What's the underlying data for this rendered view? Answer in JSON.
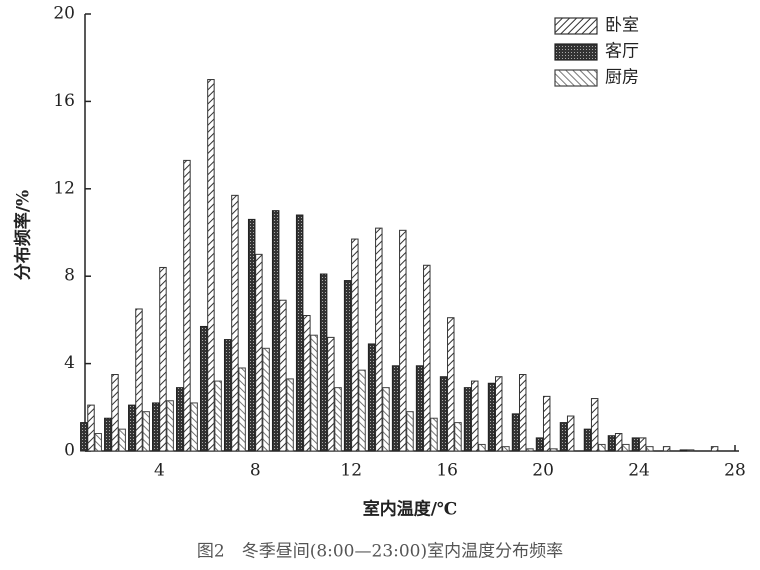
{
  "chart_data": {
    "type": "bar",
    "caption": "图2　冬季昼间(8:00—23:00)室内温度分布频率",
    "x_label": "室内温度/℃",
    "y_label": "分布频率/%",
    "x": [
      1,
      2,
      3,
      4,
      5,
      6,
      7,
      8,
      9,
      10,
      11,
      12,
      13,
      14,
      15,
      16,
      17,
      18,
      19,
      20,
      21,
      22,
      23,
      24,
      25,
      26,
      27
    ],
    "series": [
      {
        "name": "卧室",
        "color": "#333333",
        "pattern": "diagonal",
        "values": [
          2.1,
          3.5,
          6.5,
          8.4,
          13.3,
          17.0,
          11.7,
          9.0,
          6.9,
          6.2,
          5.2,
          9.7,
          10.2,
          10.1,
          8.5,
          6.1,
          3.2,
          3.4,
          3.5,
          2.5,
          1.6,
          2.4,
          0.8,
          0.6,
          0.2,
          0.05,
          0.2
        ]
      },
      {
        "name": "客厅",
        "color": "#222222",
        "pattern": "dots",
        "values": [
          1.3,
          1.5,
          2.1,
          2.2,
          2.9,
          5.7,
          5.1,
          10.6,
          11.0,
          10.8,
          8.1,
          7.8,
          4.9,
          3.9,
          3.9,
          3.4,
          2.9,
          3.1,
          1.7,
          0.6,
          1.3,
          1.0,
          0.7,
          0.6,
          0,
          0.05,
          0
        ]
      },
      {
        "name": "厨房",
        "color": "#444444",
        "pattern": "backslash",
        "values": [
          0.8,
          1.0,
          1.8,
          2.3,
          2.2,
          3.2,
          3.8,
          4.7,
          3.3,
          5.3,
          2.9,
          3.7,
          2.9,
          1.8,
          1.5,
          1.3,
          0.3,
          0.2,
          0.1,
          0.1,
          0,
          0.3,
          0.3,
          0.2,
          0,
          0,
          0
        ]
      }
    ],
    "xlim": [
      0.9,
      28
    ],
    "xticks": [
      4,
      8,
      12,
      16,
      20,
      24,
      28
    ],
    "ylim": [
      0,
      20
    ],
    "yticks": [
      0,
      4,
      8,
      12,
      16,
      20
    ],
    "legend": "upper right"
  }
}
